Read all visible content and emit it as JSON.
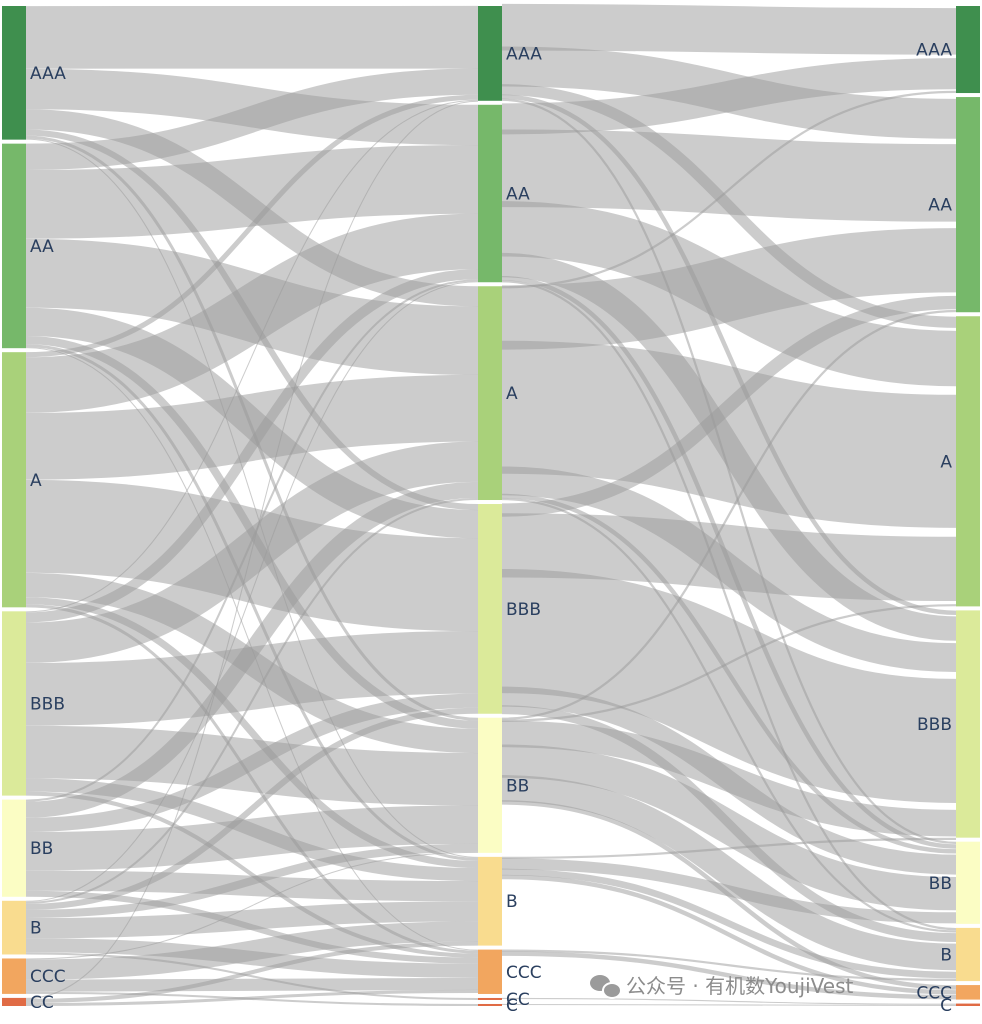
{
  "chart_data": {
    "type": "sankey",
    "title": "",
    "stages": [
      {
        "nodes": [
          {
            "label": "AAA",
            "value": 132,
            "color": "#3f8f4e"
          },
          {
            "label": "AA",
            "value": 202,
            "color": "#76b86a"
          },
          {
            "label": "A",
            "value": 252,
            "color": "#a9d17a"
          },
          {
            "label": "BBB",
            "value": 182,
            "color": "#dbea9a"
          },
          {
            "label": "BB",
            "value": 96,
            "color": "#fbfdc4"
          },
          {
            "label": "B",
            "value": 53,
            "color": "#f9dc8f"
          },
          {
            "label": "CCC",
            "value": 35,
            "color": "#f2a65f"
          },
          {
            "label": "CC",
            "value": 8,
            "color": "#e06b45"
          }
        ]
      },
      {
        "nodes": [
          {
            "label": "AAA",
            "value": 94,
            "color": "#3f8f4e"
          },
          {
            "label": "AA",
            "value": 176,
            "color": "#76b86a"
          },
          {
            "label": "A",
            "value": 212,
            "color": "#a9d17a"
          },
          {
            "label": "BBB",
            "value": 208,
            "color": "#dbea9a"
          },
          {
            "label": "BB",
            "value": 134,
            "color": "#fbfdc4"
          },
          {
            "label": "B",
            "value": 88,
            "color": "#f9dc8f"
          },
          {
            "label": "CCC",
            "value": 44,
            "color": "#f2a65f"
          },
          {
            "label": "CC",
            "value": 2,
            "color": "#e06b45"
          },
          {
            "label": "C",
            "value": 2,
            "color": "#e06b45"
          }
        ]
      },
      {
        "nodes": [
          {
            "label": "AAA",
            "value": 72,
            "color": "#3f8f4e"
          },
          {
            "label": "AA",
            "value": 178,
            "color": "#76b86a"
          },
          {
            "label": "A",
            "value": 240,
            "color": "#a9d17a"
          },
          {
            "label": "BBB",
            "value": 188,
            "color": "#dbea9a"
          },
          {
            "label": "BB",
            "value": 68,
            "color": "#fbfdc4"
          },
          {
            "label": "B",
            "value": 44,
            "color": "#f9dc8f"
          },
          {
            "label": "CCC",
            "value": 12,
            "color": "#f2a65f"
          },
          {
            "label": "C",
            "value": 2,
            "color": "#e06b45"
          }
        ]
      }
    ],
    "links": [
      {
        "stage": 0,
        "source": "AAA",
        "target": "AAA",
        "value": 62
      },
      {
        "stage": 0,
        "source": "AAA",
        "target": "AA",
        "value": 40
      },
      {
        "stage": 0,
        "source": "AAA",
        "target": "A",
        "value": 20
      },
      {
        "stage": 0,
        "source": "AAA",
        "target": "BBB",
        "value": 6
      },
      {
        "stage": 0,
        "source": "AAA",
        "target": "BB",
        "value": 3
      },
      {
        "stage": 0,
        "source": "AAA",
        "target": "B",
        "value": 1
      },
      {
        "stage": 0,
        "source": "AA",
        "target": "AAA",
        "value": 26
      },
      {
        "stage": 0,
        "source": "AA",
        "target": "AA",
        "value": 68
      },
      {
        "stage": 0,
        "source": "AA",
        "target": "A",
        "value": 68
      },
      {
        "stage": 0,
        "source": "AA",
        "target": "BBB",
        "value": 28
      },
      {
        "stage": 0,
        "source": "AA",
        "target": "BB",
        "value": 8
      },
      {
        "stage": 0,
        "source": "AA",
        "target": "B",
        "value": 3
      },
      {
        "stage": 0,
        "source": "AA",
        "target": "CCC",
        "value": 1
      },
      {
        "stage": 0,
        "source": "A",
        "target": "AAA",
        "value": 5
      },
      {
        "stage": 0,
        "source": "A",
        "target": "AA",
        "value": 55
      },
      {
        "stage": 0,
        "source": "A",
        "target": "A",
        "value": 66
      },
      {
        "stage": 0,
        "source": "A",
        "target": "BBB",
        "value": 92
      },
      {
        "stage": 0,
        "source": "A",
        "target": "BB",
        "value": 24
      },
      {
        "stage": 0,
        "source": "A",
        "target": "B",
        "value": 7
      },
      {
        "stage": 0,
        "source": "A",
        "target": "CCC",
        "value": 3
      },
      {
        "stage": 0,
        "source": "BBB",
        "target": "AAA",
        "value": 1
      },
      {
        "stage": 0,
        "source": "BBB",
        "target": "AA",
        "value": 10
      },
      {
        "stage": 0,
        "source": "BBB",
        "target": "A",
        "value": 40
      },
      {
        "stage": 0,
        "source": "BBB",
        "target": "BBB",
        "value": 62
      },
      {
        "stage": 0,
        "source": "BBB",
        "target": "BB",
        "value": 52
      },
      {
        "stage": 0,
        "source": "BBB",
        "target": "B",
        "value": 13
      },
      {
        "stage": 0,
        "source": "BBB",
        "target": "CCC",
        "value": 4
      },
      {
        "stage": 0,
        "source": "BB",
        "target": "AA",
        "value": 2
      },
      {
        "stage": 0,
        "source": "BB",
        "target": "A",
        "value": 16
      },
      {
        "stage": 0,
        "source": "BB",
        "target": "BBB",
        "value": 14
      },
      {
        "stage": 0,
        "source": "BB",
        "target": "BB",
        "value": 38
      },
      {
        "stage": 0,
        "source": "BB",
        "target": "B",
        "value": 20
      },
      {
        "stage": 0,
        "source": "BB",
        "target": "CCC",
        "value": 6
      },
      {
        "stage": 0,
        "source": "B",
        "target": "AA",
        "value": 1
      },
      {
        "stage": 0,
        "source": "B",
        "target": "A",
        "value": 2
      },
      {
        "stage": 0,
        "source": "B",
        "target": "BBB",
        "value": 6
      },
      {
        "stage": 0,
        "source": "B",
        "target": "BB",
        "value": 8
      },
      {
        "stage": 0,
        "source": "B",
        "target": "B",
        "value": 20
      },
      {
        "stage": 0,
        "source": "B",
        "target": "CCC",
        "value": 14
      },
      {
        "stage": 0,
        "source": "B",
        "target": "CC",
        "value": 2
      },
      {
        "stage": 0,
        "source": "CCC",
        "target": "BB",
        "value": 1
      },
      {
        "stage": 0,
        "source": "CCC",
        "target": "B",
        "value": 20
      },
      {
        "stage": 0,
        "source": "CCC",
        "target": "CCC",
        "value": 12
      },
      {
        "stage": 0,
        "source": "CCC",
        "target": "C",
        "value": 2
      },
      {
        "stage": 0,
        "source": "CC",
        "target": "AAA",
        "value": 1
      },
      {
        "stage": 0,
        "source": "CC",
        "target": "B",
        "value": 4
      },
      {
        "stage": 0,
        "source": "CC",
        "target": "CCC",
        "value": 3
      },
      {
        "stage": 1,
        "source": "AAA",
        "target": "AAA",
        "value": 42
      },
      {
        "stage": 1,
        "source": "AAA",
        "target": "AA",
        "value": 36
      },
      {
        "stage": 1,
        "source": "AAA",
        "target": "A",
        "value": 10
      },
      {
        "stage": 1,
        "source": "AAA",
        "target": "BBB",
        "value": 4
      },
      {
        "stage": 1,
        "source": "AAA",
        "target": "BB",
        "value": 2
      },
      {
        "stage": 1,
        "source": "AA",
        "target": "AAA",
        "value": 28
      },
      {
        "stage": 1,
        "source": "AA",
        "target": "AA",
        "value": 70
      },
      {
        "stage": 1,
        "source": "AA",
        "target": "A",
        "value": 50
      },
      {
        "stage": 1,
        "source": "AA",
        "target": "BBB",
        "value": 22
      },
      {
        "stage": 1,
        "source": "AA",
        "target": "BB",
        "value": 4
      },
      {
        "stage": 1,
        "source": "AA",
        "target": "B",
        "value": 2
      },
      {
        "stage": 1,
        "source": "A",
        "target": "AAA",
        "value": 2
      },
      {
        "stage": 1,
        "source": "A",
        "target": "AA",
        "value": 58
      },
      {
        "stage": 1,
        "source": "A",
        "target": "A",
        "value": 120
      },
      {
        "stage": 1,
        "source": "A",
        "target": "BBB",
        "value": 26
      },
      {
        "stage": 1,
        "source": "A",
        "target": "BB",
        "value": 4
      },
      {
        "stage": 1,
        "source": "A",
        "target": "B",
        "value": 2
      },
      {
        "stage": 1,
        "source": "BBB",
        "target": "AA",
        "value": 12
      },
      {
        "stage": 1,
        "source": "BBB",
        "target": "A",
        "value": 58
      },
      {
        "stage": 1,
        "source": "BBB",
        "target": "BBB",
        "value": 112
      },
      {
        "stage": 1,
        "source": "BBB",
        "target": "BB",
        "value": 18
      },
      {
        "stage": 1,
        "source": "BBB",
        "target": "B",
        "value": 8
      },
      {
        "stage": 1,
        "source": "BB",
        "target": "AA",
        "value": 2
      },
      {
        "stage": 1,
        "source": "BB",
        "target": "A",
        "value": 2
      },
      {
        "stage": 1,
        "source": "BB",
        "target": "BBB",
        "value": 24
      },
      {
        "stage": 1,
        "source": "BB",
        "target": "BB",
        "value": 30
      },
      {
        "stage": 1,
        "source": "BB",
        "target": "B",
        "value": 24
      },
      {
        "stage": 1,
        "source": "BB",
        "target": "CCC",
        "value": 4
      },
      {
        "stage": 1,
        "source": "B",
        "target": "BBB",
        "value": 2
      },
      {
        "stage": 1,
        "source": "B",
        "target": "BB",
        "value": 10
      },
      {
        "stage": 1,
        "source": "B",
        "target": "B",
        "value": 6
      },
      {
        "stage": 1,
        "source": "B",
        "target": "CCC",
        "value": 4
      },
      {
        "stage": 1,
        "source": "CCC",
        "target": "B",
        "value": 2
      },
      {
        "stage": 1,
        "source": "CCC",
        "target": "CCC",
        "value": 4
      },
      {
        "stage": 1,
        "source": "CC",
        "target": "C",
        "value": 1
      },
      {
        "stage": 1,
        "source": "C",
        "target": "C",
        "value": 1
      }
    ]
  },
  "watermark": {
    "icon": "wechat-icon",
    "text": "公众号 · 有机数YoujiVest"
  }
}
